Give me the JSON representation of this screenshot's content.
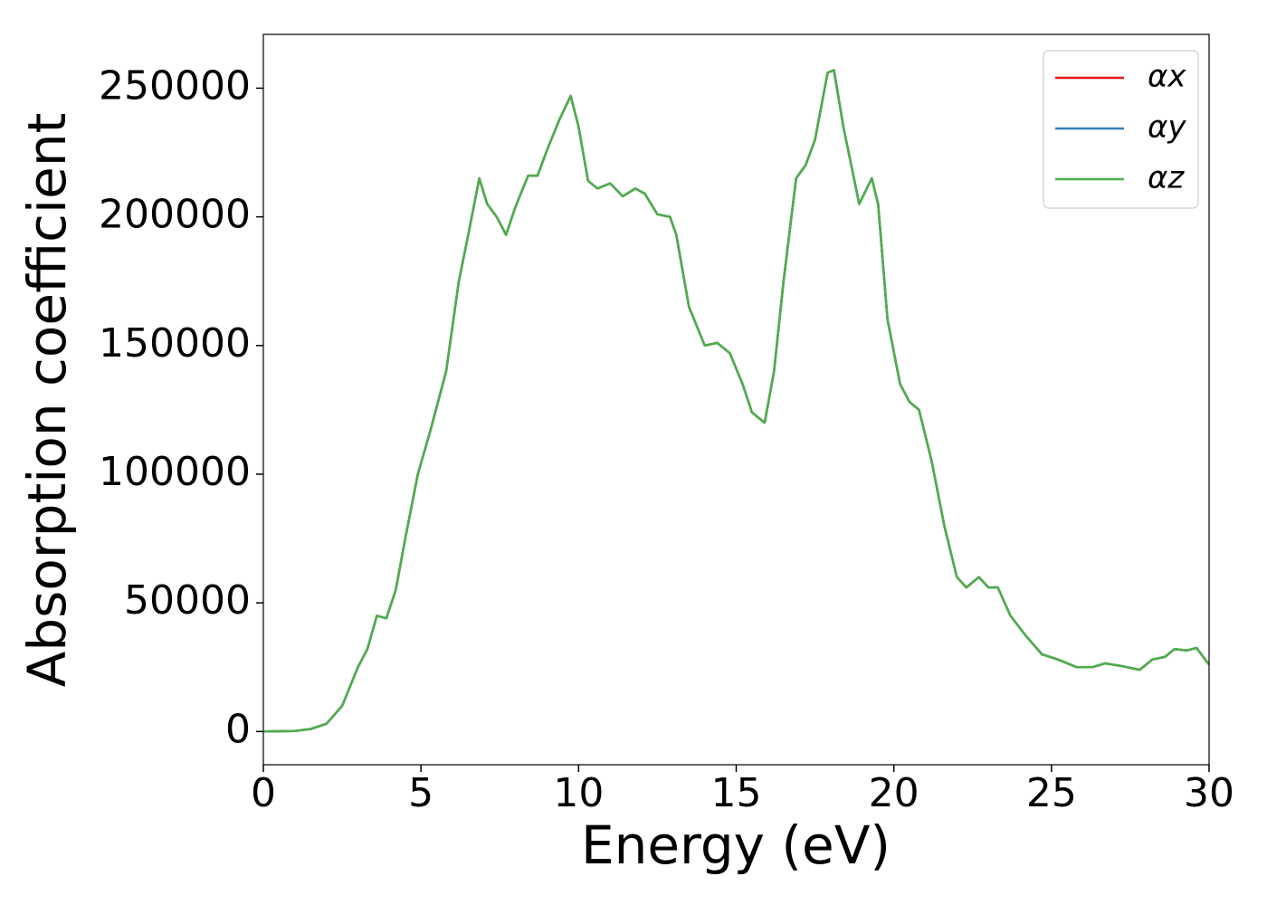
{
  "chart_data": {
    "type": "line",
    "xlabel": "Energy (eV)",
    "ylabel": "Absorption coefficient",
    "x": [
      0,
      1,
      1.5,
      2,
      2.5,
      3,
      3.3,
      3.6,
      3.9,
      4.2,
      4.5,
      4.9,
      5.3,
      5.8,
      6.2,
      6.5,
      6.85,
      7.1,
      7.4,
      7.7,
      8.0,
      8.4,
      8.7,
      9.0,
      9.4,
      9.75,
      10.0,
      10.3,
      10.6,
      11.0,
      11.4,
      11.8,
      12.1,
      12.5,
      12.9,
      13.1,
      13.5,
      14.0,
      14.4,
      14.8,
      15.2,
      15.5,
      15.9,
      16.2,
      16.5,
      16.9,
      17.2,
      17.5,
      17.9,
      18.1,
      18.4,
      18.9,
      19.3,
      19.5,
      19.8,
      20.2,
      20.5,
      20.8,
      21.2,
      21.6,
      22.0,
      22.3,
      22.7,
      23.0,
      23.3,
      23.7,
      24.2,
      24.7,
      25.2,
      25.8,
      26.3,
      26.7,
      27.2,
      27.8,
      28.2,
      28.6,
      28.9,
      29.3,
      29.6,
      30
    ],
    "series": [
      {
        "name": "αx",
        "color": "#e41a1c",
        "values": [
          0,
          200,
          1000,
          3000,
          10000,
          25000,
          32000,
          45000,
          44000,
          55000,
          75000,
          100000,
          117000,
          140000,
          175000,
          193000,
          215000,
          205000,
          200000,
          193000,
          204000,
          216000,
          216000,
          226000,
          238000,
          247000,
          235000,
          214000,
          211000,
          213000,
          208000,
          211000,
          209000,
          201000,
          200000,
          193000,
          165000,
          150000,
          151000,
          147000,
          135000,
          124000,
          120000,
          140000,
          175000,
          215000,
          220000,
          230000,
          256000,
          257000,
          235000,
          205000,
          215000,
          205000,
          160000,
          135000,
          128000,
          125000,
          105000,
          80000,
          60000,
          56000,
          60000,
          56000,
          56000,
          45000,
          37000,
          30000,
          28000,
          25000,
          25000,
          26500,
          25500,
          24000,
          28000,
          29000,
          32000,
          31500,
          32500,
          26000
        ]
      },
      {
        "name": "αy",
        "color": "#377eb8",
        "values": [
          0,
          200,
          1000,
          3000,
          10000,
          25000,
          32000,
          45000,
          44000,
          55000,
          75000,
          100000,
          117000,
          140000,
          175000,
          193000,
          215000,
          205000,
          200000,
          193000,
          204000,
          216000,
          216000,
          226000,
          238000,
          247000,
          235000,
          214000,
          211000,
          213000,
          208000,
          211000,
          209000,
          201000,
          200000,
          193000,
          165000,
          150000,
          151000,
          147000,
          135000,
          124000,
          120000,
          140000,
          175000,
          215000,
          220000,
          230000,
          256000,
          257000,
          235000,
          205000,
          215000,
          205000,
          160000,
          135000,
          128000,
          125000,
          105000,
          80000,
          60000,
          56000,
          60000,
          56000,
          56000,
          45000,
          37000,
          30000,
          28000,
          25000,
          25000,
          26500,
          25500,
          24000,
          28000,
          29000,
          32000,
          31500,
          32500,
          26000
        ]
      },
      {
        "name": "αz",
        "color": "#4daf4a",
        "values": [
          0,
          200,
          1000,
          3000,
          10000,
          25000,
          32000,
          45000,
          44000,
          55000,
          75000,
          100000,
          117000,
          140000,
          175000,
          193000,
          215000,
          205000,
          200000,
          193000,
          204000,
          216000,
          216000,
          226000,
          238000,
          247000,
          235000,
          214000,
          211000,
          213000,
          208000,
          211000,
          209000,
          201000,
          200000,
          193000,
          165000,
          150000,
          151000,
          147000,
          135000,
          124000,
          120000,
          140000,
          175000,
          215000,
          220000,
          230000,
          256000,
          257000,
          235000,
          205000,
          215000,
          205000,
          160000,
          135000,
          128000,
          125000,
          105000,
          80000,
          60000,
          56000,
          60000,
          56000,
          56000,
          45000,
          37000,
          30000,
          28000,
          25000,
          25000,
          26500,
          25500,
          24000,
          28000,
          29000,
          32000,
          31500,
          32500,
          26000
        ]
      }
    ],
    "xlim": [
      0,
      30
    ],
    "xticks": [
      0,
      5,
      10,
      15,
      20,
      25,
      30
    ],
    "ylim": [
      -12900,
      270900
    ],
    "yticks": [
      0,
      50000,
      100000,
      150000,
      200000,
      250000
    ],
    "legend": "upper right",
    "grid": false
  }
}
